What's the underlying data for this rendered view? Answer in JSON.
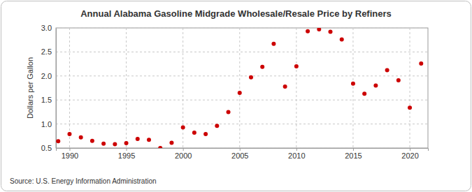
{
  "chart_data": {
    "type": "scatter",
    "title": "Annual Alabama Gasoline Midgrade Wholesale/Resale Price by Refiners",
    "y_label": "Dollars per Gallon",
    "annotations": [
      "Source: U.S. Energy Information Administration"
    ],
    "x": [
      1989,
      1990,
      1991,
      1992,
      1993,
      1994,
      1995,
      1996,
      1997,
      1998,
      1999,
      2000,
      2001,
      2002,
      2003,
      2004,
      2005,
      2006,
      2007,
      2008,
      2009,
      2010,
      2011,
      2012,
      2013,
      2014,
      2015,
      2016,
      2017,
      2018,
      2019,
      2020,
      2021
    ],
    "values": [
      0.64,
      0.79,
      0.72,
      0.65,
      0.59,
      0.58,
      0.6,
      0.69,
      0.67,
      0.5,
      0.61,
      0.93,
      0.82,
      0.79,
      0.96,
      1.25,
      1.65,
      1.97,
      2.19,
      2.67,
      1.78,
      2.2,
      2.93,
      2.97,
      2.92,
      2.76,
      1.84,
      1.63,
      1.8,
      2.12,
      1.91,
      1.34,
      2.26
    ],
    "color": "#cc0000",
    "marker": "circle",
    "xlim": [
      1988.8,
      2021.6
    ],
    "xticks": [
      1990,
      1995,
      2000,
      2005,
      2010,
      2015,
      2020
    ],
    "ylim": [
      0.5,
      3.0
    ],
    "yticks": [
      0.5,
      {
        "value": 1.0,
        "label": "1.0"
      },
      1.5,
      {
        "value": 2.0,
        "label": "2.0"
      },
      2.5,
      {
        "value": 3.0,
        "label": "3.0"
      }
    ],
    "grid": true
  }
}
